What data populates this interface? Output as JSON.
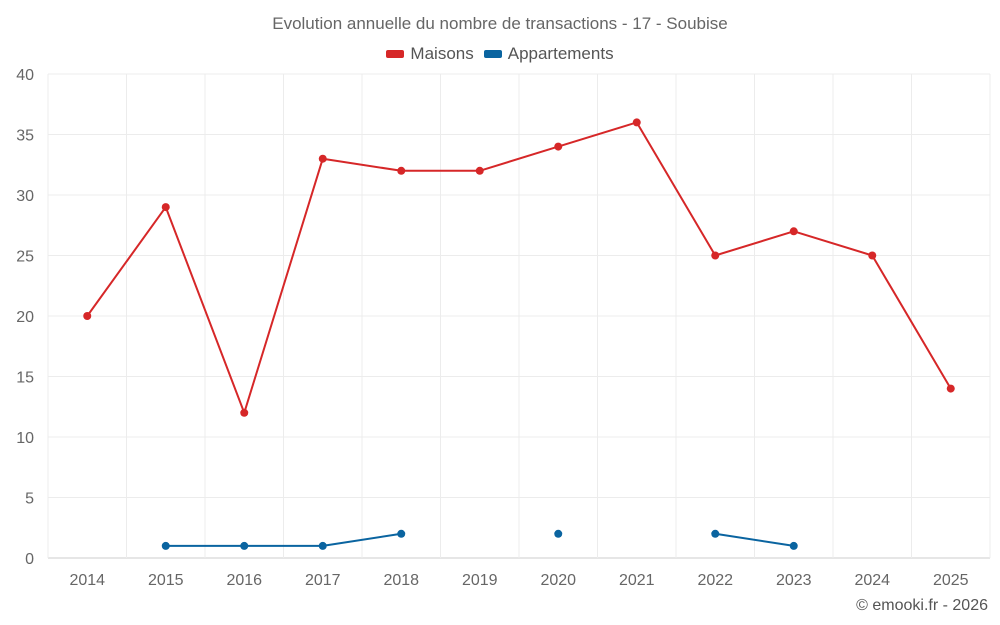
{
  "title": "Evolution annuelle du nombre de transactions - 17 - Soubise",
  "credit": "© emooki.fr - 2026",
  "chart_data": {
    "type": "line",
    "title": "Evolution annuelle du nombre de transactions - 17 - Soubise",
    "xlabel": "",
    "ylabel": "",
    "categories": [
      "2014",
      "2015",
      "2016",
      "2017",
      "2018",
      "2019",
      "2020",
      "2021",
      "2022",
      "2023",
      "2024",
      "2025"
    ],
    "ylim": [
      0,
      40
    ],
    "yticks": [
      0,
      5,
      10,
      15,
      20,
      25,
      30,
      35,
      40
    ],
    "grid": true,
    "legend_position": "top-center",
    "series": [
      {
        "name": "Maisons",
        "color": "#d62728",
        "values": [
          20,
          29,
          12,
          33,
          32,
          32,
          34,
          36,
          25,
          27,
          25,
          14
        ]
      },
      {
        "name": "Appartements",
        "color": "#0a64a0",
        "values": [
          null,
          1,
          1,
          1,
          2,
          null,
          2,
          null,
          2,
          1,
          null,
          null
        ]
      }
    ]
  }
}
